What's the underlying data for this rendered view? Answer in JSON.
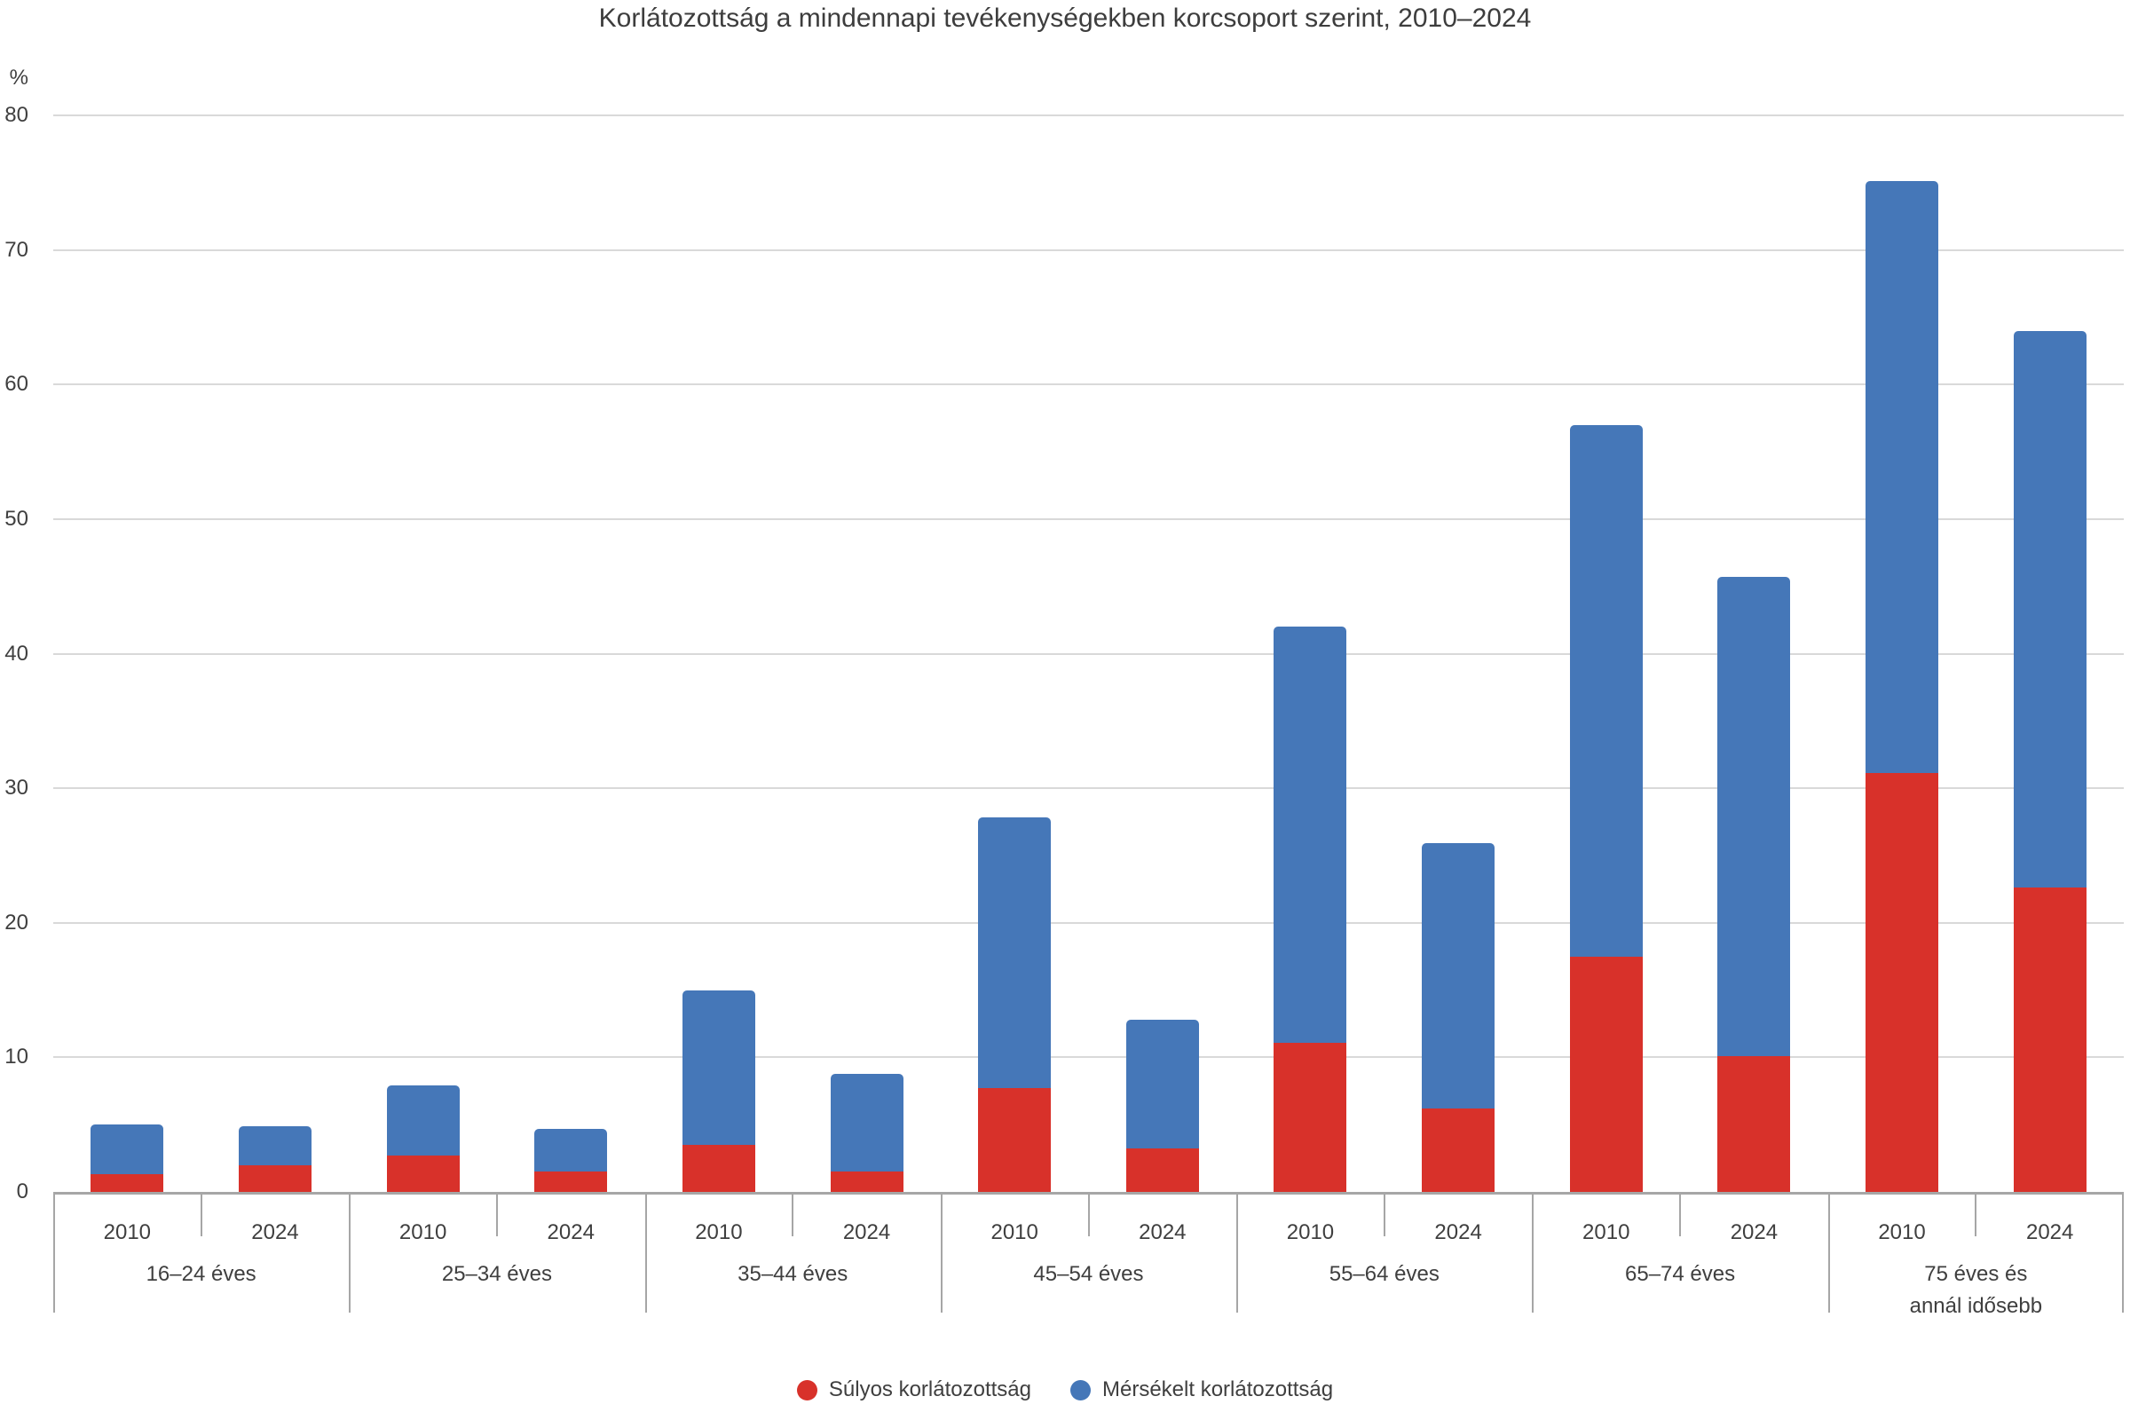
{
  "title": "Korlátozottság a mindennapi tevékenységekben korcsoport szerint, 2010–2024",
  "y_axis": {
    "unit_label": "%",
    "ticks": [
      0,
      10,
      20,
      30,
      40,
      50,
      60,
      70,
      80
    ]
  },
  "colors": {
    "severe": "#d8312a",
    "moderate": "#4577b8",
    "gridline": "#d9d9d9",
    "axis": "#a6a6a6",
    "text": "#3f3f3f"
  },
  "legend": {
    "items": [
      {
        "label": "Súlyos korlátozottság",
        "color": "#d8312a",
        "marker": "circle"
      },
      {
        "label": "Mérsékelt korlátozottság",
        "color": "#4577b8",
        "marker": "circle"
      }
    ]
  },
  "chart_data": {
    "type": "bar",
    "stacked": true,
    "title": "Korlátozottság a mindennapi tevékenységekben korcsoport szerint, 2010–2024",
    "ylabel": "%",
    "ylim": [
      0,
      80
    ],
    "ytick_step": 10,
    "grid": true,
    "legend_position": "bottom",
    "series_names": [
      "Súlyos korlátozottság",
      "Mérsékelt korlátozottság"
    ],
    "x_sub_labels": [
      "2010",
      "2024"
    ],
    "categories": [
      "16–24 éves",
      "25–34 éves",
      "35–44 éves",
      "45–54 éves",
      "55–64 éves",
      "65–74 éves",
      "75 éves és annál idősebb"
    ],
    "groups": [
      {
        "category": "16–24 éves",
        "label_lines": [
          "16–24 éves"
        ],
        "bars": [
          {
            "year": "2010",
            "severe": 1.3,
            "moderate": 3.7,
            "total": 5.0
          },
          {
            "year": "2024",
            "severe": 2.0,
            "moderate": 2.9,
            "total": 4.9
          }
        ]
      },
      {
        "category": "25–34 éves",
        "label_lines": [
          "25–34 éves"
        ],
        "bars": [
          {
            "year": "2010",
            "severe": 2.7,
            "moderate": 5.2,
            "total": 7.9
          },
          {
            "year": "2024",
            "severe": 1.5,
            "moderate": 3.2,
            "total": 4.7
          }
        ]
      },
      {
        "category": "35–44 éves",
        "label_lines": [
          "35–44 éves"
        ],
        "bars": [
          {
            "year": "2010",
            "severe": 3.5,
            "moderate": 11.5,
            "total": 15.0
          },
          {
            "year": "2024",
            "severe": 1.5,
            "moderate": 7.3,
            "total": 8.8
          }
        ]
      },
      {
        "category": "45–54 éves",
        "label_lines": [
          "45–54 éves"
        ],
        "bars": [
          {
            "year": "2010",
            "severe": 7.7,
            "moderate": 20.1,
            "total": 27.8
          },
          {
            "year": "2024",
            "severe": 3.2,
            "moderate": 9.6,
            "total": 12.8
          }
        ]
      },
      {
        "category": "55–64 éves",
        "label_lines": [
          "55–64 éves"
        ],
        "bars": [
          {
            "year": "2010",
            "severe": 11.1,
            "moderate": 30.9,
            "total": 42.0
          },
          {
            "year": "2024",
            "severe": 6.2,
            "moderate": 19.7,
            "total": 25.9
          }
        ]
      },
      {
        "category": "65–74 éves",
        "label_lines": [
          "65–74 éves"
        ],
        "bars": [
          {
            "year": "2010",
            "severe": 17.5,
            "moderate": 39.5,
            "total": 57.0
          },
          {
            "year": "2024",
            "severe": 10.1,
            "moderate": 35.6,
            "total": 45.7
          }
        ]
      },
      {
        "category": "75 éves és annál idősebb",
        "label_lines": [
          "75 éves és",
          "annál idősebb"
        ],
        "bars": [
          {
            "year": "2010",
            "severe": 31.1,
            "moderate": 44.0,
            "total": 75.1
          },
          {
            "year": "2024",
            "severe": 22.6,
            "moderate": 41.4,
            "total": 64.0
          }
        ]
      }
    ]
  }
}
